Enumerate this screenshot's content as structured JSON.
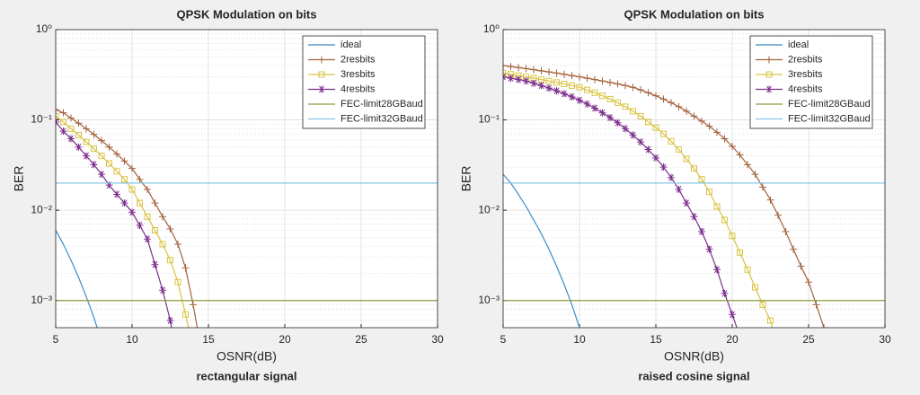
{
  "chart_data": [
    {
      "type": "line",
      "title": "QPSK Modulation on bits",
      "xlabel": "OSNR(dB)",
      "ylabel": "BER",
      "caption": "rectangular signal",
      "xlim": [
        5,
        30
      ],
      "xticks": [
        5,
        10,
        15,
        20,
        25,
        30
      ],
      "ylim": [
        0.0005,
        1
      ],
      "log_y": true,
      "grid": true,
      "minor_grid": true,
      "legend": "northeast",
      "yticks": [
        {
          "value": 0.001,
          "label": "10⁻³"
        },
        {
          "value": 0.01,
          "label": "10⁻²"
        },
        {
          "value": 0.1,
          "label": "10⁻¹"
        },
        {
          "value": 1,
          "label": "10⁰"
        }
      ],
      "series": [
        {
          "name": "ideal",
          "color": "#3d8cc4",
          "marker": "none",
          "x": [
            5,
            5.5,
            6,
            6.5,
            7,
            7.5,
            8
          ],
          "values": [
            0.006,
            0.0042,
            0.0028,
            0.0018,
            0.0011,
            0.00065,
            0.00035
          ]
        },
        {
          "name": "2resbits",
          "color": "#a3623b",
          "marker": "plus",
          "x": [
            5,
            5.5,
            6,
            6.5,
            7,
            7.5,
            8,
            8.5,
            9,
            9.5,
            10,
            10.5,
            11,
            11.5,
            12,
            12.5,
            13,
            13.5,
            14,
            14.5
          ],
          "values": [
            0.13,
            0.12,
            0.105,
            0.092,
            0.08,
            0.069,
            0.059,
            0.05,
            0.042,
            0.035,
            0.029,
            0.022,
            0.017,
            0.012,
            0.0085,
            0.0062,
            0.0042,
            0.0023,
            0.0009,
            0.0003
          ]
        },
        {
          "name": "3resbits",
          "color": "#d9c341",
          "marker": "square",
          "x": [
            5,
            5.5,
            6,
            6.5,
            7,
            7.5,
            8,
            8.5,
            9,
            9.5,
            10,
            10.5,
            11,
            11.5,
            12,
            12.5,
            13,
            13.5,
            14
          ],
          "values": [
            0.11,
            0.095,
            0.08,
            0.068,
            0.057,
            0.048,
            0.04,
            0.033,
            0.027,
            0.022,
            0.017,
            0.012,
            0.0085,
            0.006,
            0.0042,
            0.0028,
            0.0016,
            0.0007,
            0.0003
          ]
        },
        {
          "name": "4resbits",
          "color": "#7e2f8e",
          "marker": "star",
          "x": [
            5,
            5.5,
            6,
            6.5,
            7,
            7.5,
            8,
            8.5,
            9,
            9.5,
            10,
            10.5,
            11,
            11.5,
            12,
            12.5,
            13
          ],
          "values": [
            0.095,
            0.075,
            0.062,
            0.05,
            0.04,
            0.032,
            0.025,
            0.019,
            0.015,
            0.012,
            0.0095,
            0.0068,
            0.0048,
            0.0025,
            0.0013,
            0.0006,
            0.0002
          ]
        },
        {
          "name": "FEC-limit28GBaud",
          "color": "#8c9a3c",
          "marker": "none",
          "x": [
            5,
            30
          ],
          "values": [
            0.001,
            0.001
          ]
        },
        {
          "name": "FEC-limit32GBaud",
          "color": "#86c6e3",
          "marker": "none",
          "x": [
            5,
            30
          ],
          "values": [
            0.02,
            0.02
          ]
        }
      ]
    },
    {
      "type": "line",
      "title": "QPSK Modulation on bits",
      "xlabel": "OSNR(dB)",
      "ylabel": "BER",
      "caption": "raised cosine signal",
      "xlim": [
        5,
        30
      ],
      "xticks": [
        5,
        10,
        15,
        20,
        25,
        30
      ],
      "ylim": [
        0.0005,
        1
      ],
      "log_y": true,
      "grid": true,
      "minor_grid": true,
      "legend": "northeast",
      "yticks": [
        {
          "value": 0.001,
          "label": "10⁻³"
        },
        {
          "value": 0.01,
          "label": "10⁻²"
        },
        {
          "value": 0.1,
          "label": "10⁻¹"
        },
        {
          "value": 1,
          "label": "10⁰"
        }
      ],
      "series": [
        {
          "name": "ideal",
          "color": "#3d8cc4",
          "marker": "none",
          "x": [
            5,
            5.5,
            6,
            6.5,
            7,
            7.5,
            8,
            8.5,
            9,
            9.5,
            10,
            10.5
          ],
          "values": [
            0.025,
            0.02,
            0.015,
            0.011,
            0.0078,
            0.0055,
            0.0037,
            0.0024,
            0.0015,
            0.0009,
            0.0005,
            0.00028
          ]
        },
        {
          "name": "2resbits",
          "color": "#a3623b",
          "marker": "plus",
          "x": [
            5,
            5.5,
            6,
            6.5,
            7,
            7.5,
            8,
            8.5,
            9,
            9.5,
            10,
            10.5,
            11,
            11.5,
            12,
            12.5,
            13,
            13.5,
            14,
            14.5,
            15,
            15.5,
            16,
            16.5,
            17,
            17.5,
            18,
            18.5,
            19,
            19.5,
            20,
            20.5,
            21,
            21.5,
            22,
            22.5,
            23,
            23.5,
            24,
            24.5,
            25,
            25.5,
            26,
            26.5
          ],
          "values": [
            0.4,
            0.39,
            0.38,
            0.37,
            0.36,
            0.35,
            0.34,
            0.33,
            0.32,
            0.31,
            0.3,
            0.29,
            0.28,
            0.27,
            0.26,
            0.25,
            0.24,
            0.23,
            0.215,
            0.2,
            0.185,
            0.17,
            0.155,
            0.14,
            0.125,
            0.11,
            0.097,
            0.085,
            0.073,
            0.062,
            0.051,
            0.041,
            0.032,
            0.025,
            0.018,
            0.013,
            0.0088,
            0.0058,
            0.0037,
            0.0024,
            0.0016,
            0.0009,
            0.0005,
            0.0002
          ]
        },
        {
          "name": "3resbits",
          "color": "#d9c341",
          "marker": "square",
          "x": [
            5,
            5.5,
            6,
            6.5,
            7,
            7.5,
            8,
            8.5,
            9,
            9.5,
            10,
            10.5,
            11,
            11.5,
            12,
            12.5,
            13,
            13.5,
            14,
            14.5,
            15,
            15.5,
            16,
            16.5,
            17,
            17.5,
            18,
            18.5,
            19,
            19.5,
            20,
            20.5,
            21,
            21.5,
            22,
            22.5,
            23
          ],
          "values": [
            0.33,
            0.32,
            0.31,
            0.3,
            0.29,
            0.28,
            0.27,
            0.26,
            0.25,
            0.24,
            0.23,
            0.215,
            0.2,
            0.185,
            0.17,
            0.155,
            0.14,
            0.125,
            0.11,
            0.095,
            0.082,
            0.07,
            0.058,
            0.047,
            0.037,
            0.029,
            0.022,
            0.016,
            0.011,
            0.0078,
            0.0052,
            0.0034,
            0.0022,
            0.0014,
            0.0009,
            0.0006,
            0.0003
          ]
        },
        {
          "name": "4resbits",
          "color": "#7e2f8e",
          "marker": "star",
          "x": [
            5,
            5.5,
            6,
            6.5,
            7,
            7.5,
            8,
            8.5,
            9,
            9.5,
            10,
            10.5,
            11,
            11.5,
            12,
            12.5,
            13,
            13.5,
            14,
            14.5,
            15,
            15.5,
            16,
            16.5,
            17,
            17.5,
            18,
            18.5,
            19,
            19.5,
            20,
            20.5
          ],
          "values": [
            0.3,
            0.29,
            0.28,
            0.27,
            0.255,
            0.24,
            0.225,
            0.21,
            0.195,
            0.18,
            0.165,
            0.15,
            0.135,
            0.12,
            0.106,
            0.093,
            0.08,
            0.068,
            0.057,
            0.047,
            0.038,
            0.03,
            0.023,
            0.017,
            0.012,
            0.0085,
            0.0058,
            0.0037,
            0.0022,
            0.0012,
            0.0007,
            0.0004
          ]
        },
        {
          "name": "FEC-limit28GBaud",
          "color": "#8c9a3c",
          "marker": "none",
          "x": [
            5,
            30
          ],
          "values": [
            0.001,
            0.001
          ]
        },
        {
          "name": "FEC-limit32GBaud",
          "color": "#86c6e3",
          "marker": "none",
          "x": [
            5,
            30
          ],
          "values": [
            0.02,
            0.02
          ]
        }
      ]
    }
  ]
}
